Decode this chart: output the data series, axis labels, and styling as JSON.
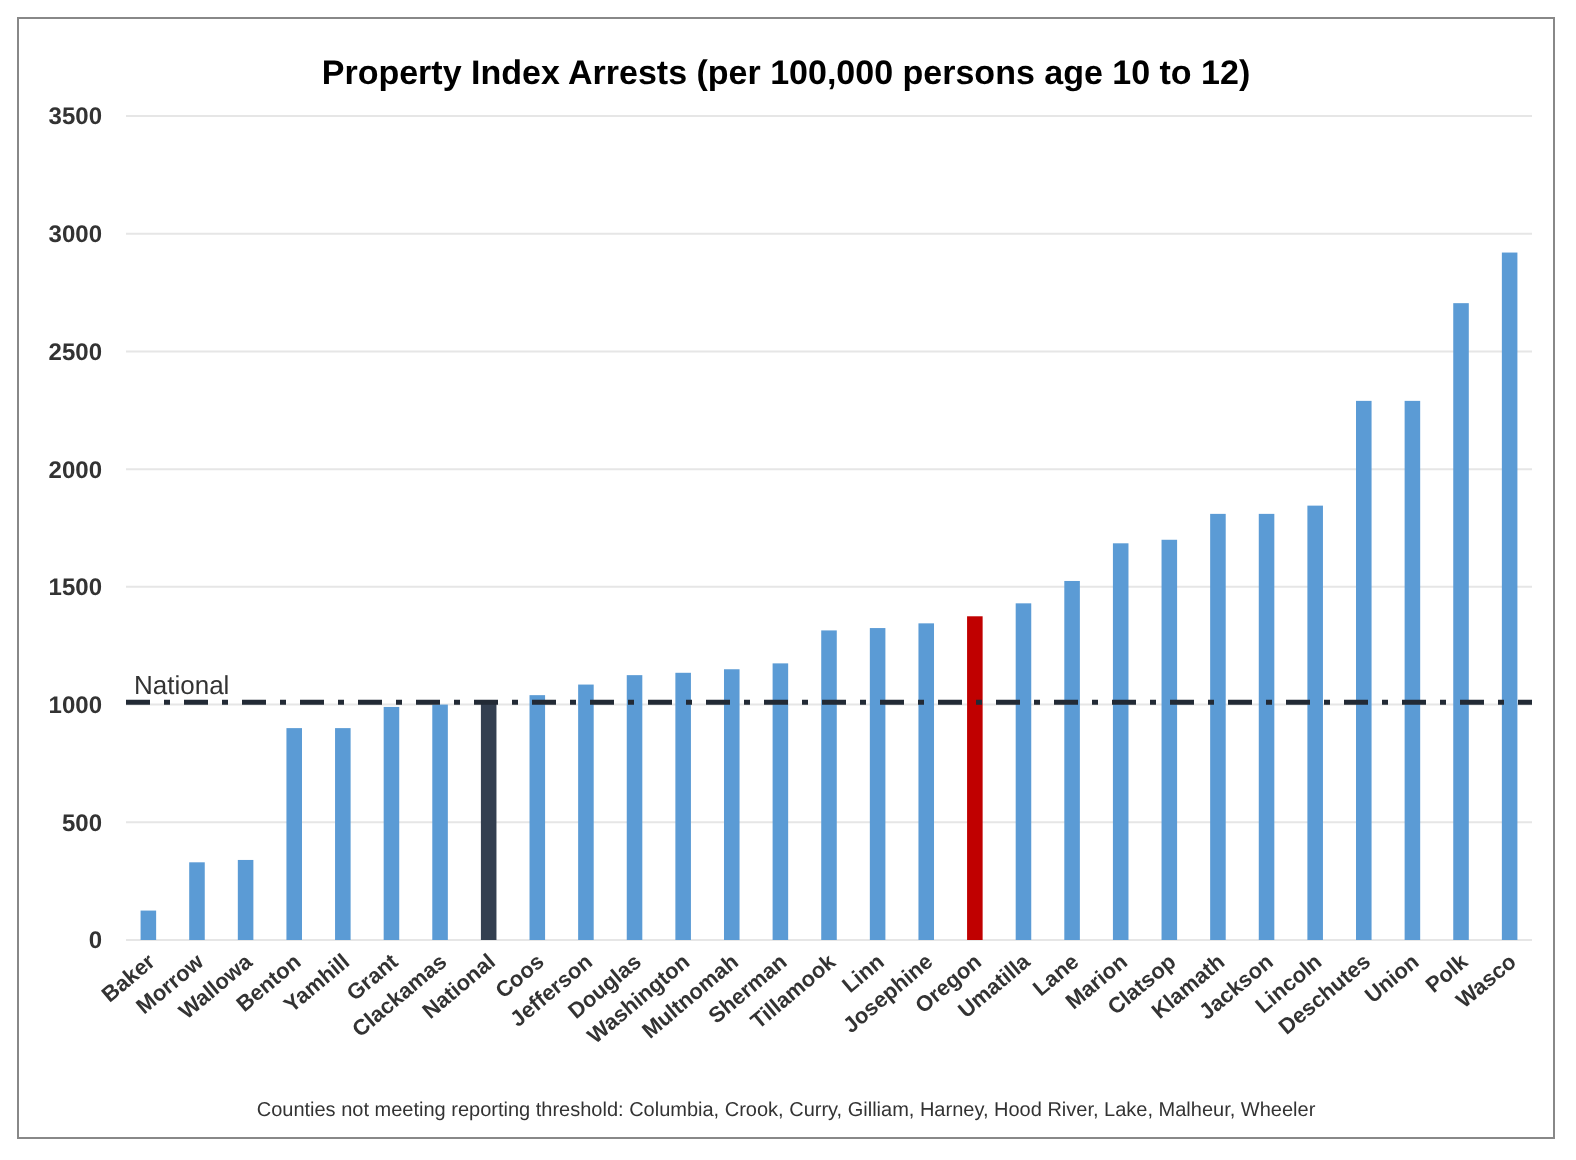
{
  "chart_data": {
    "type": "bar",
    "title": "Property Index  Arrests (per 100,000 persons age 10 to 12)",
    "categories": [
      "Baker",
      "Morrow",
      "Wallowa",
      "Benton",
      "Yamhill",
      "Grant",
      "Clackamas",
      "National",
      "Coos",
      "Jefferson",
      "Douglas",
      "Washington",
      "Multnomah",
      "Sherman",
      "Tillamook",
      "Linn",
      "Josephine",
      "Oregon",
      "Umatilla",
      "Lane",
      "Marion",
      "Clatsop",
      "Klamath",
      "Jackson",
      "Lincoln",
      "Deschutes",
      "Union",
      "Polk",
      "Wasco"
    ],
    "values": [
      125,
      330,
      340,
      900,
      900,
      990,
      1000,
      1010,
      1040,
      1085,
      1125,
      1135,
      1150,
      1175,
      1315,
      1325,
      1345,
      1375,
      1430,
      1525,
      1685,
      1700,
      1810,
      1810,
      1845,
      2290,
      2290,
      2705,
      2920
    ],
    "colors": [
      "#5b9bd5",
      "#5b9bd5",
      "#5b9bd5",
      "#5b9bd5",
      "#5b9bd5",
      "#5b9bd5",
      "#5b9bd5",
      "#333f50",
      "#5b9bd5",
      "#5b9bd5",
      "#5b9bd5",
      "#5b9bd5",
      "#5b9bd5",
      "#5b9bd5",
      "#5b9bd5",
      "#5b9bd5",
      "#5b9bd5",
      "#c00000",
      "#5b9bd5",
      "#5b9bd5",
      "#5b9bd5",
      "#5b9bd5",
      "#5b9bd5",
      "#5b9bd5",
      "#5b9bd5",
      "#5b9bd5",
      "#5b9bd5",
      "#5b9bd5",
      "#5b9bd5"
    ],
    "ylim": [
      0,
      3500
    ],
    "yticks": [
      0,
      500,
      1000,
      1500,
      2000,
      2500,
      3000,
      3500
    ],
    "grid": "y",
    "ref_lines": [
      {
        "axis": "y",
        "value": 1010,
        "label": "National",
        "color": "#222a35",
        "line_style": "dashdot"
      }
    ],
    "annotations": [
      "Counties not meeting reporting threshold: Columbia,  Crook,  Curry,  Gilliam,  Harney,  Hood River,  Lake,  Malheur,  Wheeler"
    ]
  }
}
